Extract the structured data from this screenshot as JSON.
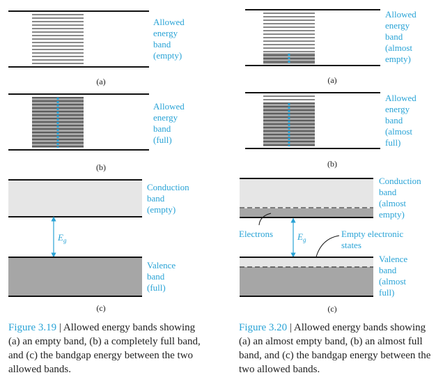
{
  "colors": {
    "accent": "#29a3d6",
    "band_dark": "#a6a6a6",
    "band_light": "#e6e6e6",
    "line": "#111111"
  },
  "fig319": {
    "a": {
      "label_lines": [
        "Allowed",
        "energy",
        "band",
        "(empty)"
      ],
      "sub": "(a)"
    },
    "b": {
      "label_lines": [
        "Allowed",
        "energy",
        "band",
        "(full)"
      ],
      "sub": "(b)"
    },
    "c": {
      "conduction_lines": [
        "Conduction",
        "band",
        "(empty)"
      ],
      "valence_lines": [
        "Valence",
        "band",
        "(full)"
      ],
      "gap_symbol": "E",
      "gap_subscript": "g",
      "sub": "(c)"
    },
    "caption": {
      "figure_label": "Figure 3.19",
      "separator": " | ",
      "text": "Allowed energy bands showing (a) an empty band, (b) a completely full band, and (c) the bandgap energy between the two allowed bands."
    }
  },
  "fig320": {
    "a": {
      "label_lines": [
        "Allowed",
        "energy",
        "band",
        "(almost",
        "empty)"
      ],
      "sub": "(a)"
    },
    "b": {
      "label_lines": [
        "Allowed",
        "energy",
        "band",
        "(almost",
        "full)"
      ],
      "sub": "(b)"
    },
    "c": {
      "conduction_lines": [
        "Conduction",
        "band",
        "(almost",
        "empty)"
      ],
      "valence_lines": [
        "Valence",
        "band",
        "(almost",
        "full)"
      ],
      "electrons_label": "Electrons",
      "states_lines": [
        "Empty electronic",
        "states"
      ],
      "gap_symbol": "E",
      "gap_subscript": "g",
      "sub": "(c)"
    },
    "caption": {
      "figure_label": "Figure 3.20",
      "separator": " | ",
      "text": "Allowed energy bands showing (a) an almost empty band, (b) an almost full band, and (c) the bandgap energy between the two allowed bands."
    }
  }
}
